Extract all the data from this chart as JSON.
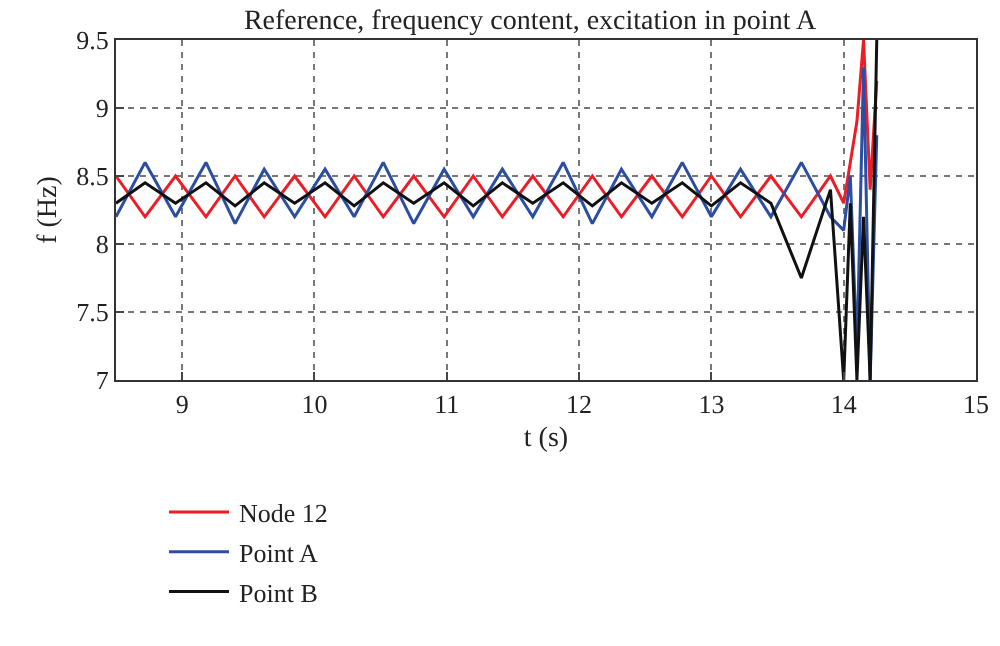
{
  "chart_data": {
    "type": "line",
    "title": "Reference, frequency content, excitation in point A",
    "xlabel": "t (s)",
    "ylabel": "f (Hz)",
    "x": [
      8.5,
      8.72,
      8.95,
      9.18,
      9.4,
      9.62,
      9.85,
      10.08,
      10.3,
      10.52,
      10.75,
      10.98,
      11.2,
      11.42,
      11.65,
      11.88,
      12.1,
      12.32,
      12.55,
      12.78,
      13.0,
      13.22,
      13.45,
      13.68,
      13.9,
      14.0,
      14.05,
      14.1,
      14.15,
      14.2,
      14.25
    ],
    "series": [
      {
        "name": "Node 12",
        "color": "#ee1c25",
        "values": [
          8.5,
          8.2,
          8.5,
          8.2,
          8.5,
          8.2,
          8.5,
          8.2,
          8.5,
          8.2,
          8.5,
          8.2,
          8.5,
          8.2,
          8.5,
          8.2,
          8.5,
          8.2,
          8.5,
          8.2,
          8.5,
          8.2,
          8.5,
          8.2,
          8.5,
          8.3,
          8.6,
          8.9,
          9.5,
          8.4,
          9.2
        ]
      },
      {
        "name": "Point A",
        "color": "#2b4ea2",
        "values": [
          8.2,
          8.6,
          8.2,
          8.6,
          8.15,
          8.55,
          8.2,
          8.55,
          8.2,
          8.6,
          8.15,
          8.55,
          8.2,
          8.55,
          8.2,
          8.6,
          8.15,
          8.55,
          8.2,
          8.6,
          8.2,
          8.55,
          8.2,
          8.6,
          8.2,
          8.1,
          8.5,
          7.2,
          9.3,
          7.0,
          8.8
        ]
      },
      {
        "name": "Point B",
        "color": "#111111",
        "values": [
          8.3,
          8.45,
          8.3,
          8.45,
          8.28,
          8.45,
          8.3,
          8.45,
          8.28,
          8.45,
          8.3,
          8.45,
          8.28,
          8.45,
          8.3,
          8.45,
          8.28,
          8.45,
          8.3,
          8.45,
          8.28,
          8.45,
          8.3,
          7.75,
          8.4,
          7.0,
          8.3,
          7.0,
          8.2,
          7.0,
          9.5
        ]
      }
    ],
    "xlim": [
      8.5,
      15
    ],
    "xticks": [
      9,
      10,
      11,
      12,
      13,
      14,
      15
    ],
    "ylim": [
      7,
      9.5
    ],
    "yticks": [
      7,
      7.5,
      8,
      8.5,
      9,
      9.5
    ],
    "grid": true,
    "legend": "bottom left",
    "line_style": "solid",
    "marker": "none"
  }
}
